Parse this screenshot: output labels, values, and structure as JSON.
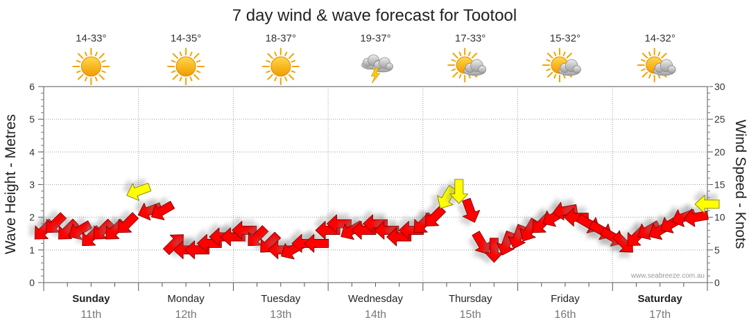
{
  "chart_data": {
    "type": "wind-wave-forecast",
    "title": "7 day wind & wave forecast for Tootool",
    "ylabel_left": "Wave Height - Metres",
    "ylabel_right": "Wind Speed - Knots",
    "ylim_left": [
      0,
      6
    ],
    "ylim_right": [
      0,
      30
    ],
    "yticks_left": [
      "0",
      "1",
      "2",
      "3",
      "4",
      "5",
      "6"
    ],
    "yticks_right": [
      "0",
      "5",
      "10",
      "15",
      "20",
      "25",
      "30"
    ],
    "days": [
      {
        "name": "Sunday",
        "date": "11th",
        "temp": "14-33°",
        "weather": "sunny",
        "bold": true
      },
      {
        "name": "Monday",
        "date": "12th",
        "temp": "14-35°",
        "weather": "sunny",
        "bold": false
      },
      {
        "name": "Tuesday",
        "date": "13th",
        "temp": "18-37°",
        "weather": "sunny",
        "bold": false
      },
      {
        "name": "Wednesday",
        "date": "14th",
        "temp": "19-37°",
        "weather": "storm",
        "bold": false
      },
      {
        "name": "Thursday",
        "date": "15th",
        "temp": "17-33°",
        "weather": "partly-cloudy",
        "bold": false
      },
      {
        "name": "Friday",
        "date": "16th",
        "temp": "15-32°",
        "weather": "partly-cloudy",
        "bold": false
      },
      {
        "name": "Saturday",
        "date": "17th",
        "temp": "14-32°",
        "weather": "partly-cloudy",
        "bold": true
      }
    ],
    "wind_x_days": [
      0.0,
      0.12,
      0.25,
      0.38,
      0.5,
      0.62,
      0.75,
      0.88,
      1.0,
      1.12,
      1.25,
      1.38,
      1.5,
      1.62,
      1.75,
      1.88,
      2.0,
      2.12,
      2.25,
      2.38,
      2.5,
      2.62,
      2.75,
      2.88,
      3.0,
      3.12,
      3.25,
      3.38,
      3.5,
      3.62,
      3.75,
      3.88,
      4.0,
      4.12,
      4.25,
      4.38,
      4.5,
      4.62,
      4.75,
      4.88,
      5.0,
      5.12,
      5.25,
      5.38,
      5.5,
      5.62,
      5.75,
      5.88,
      6.0,
      6.12,
      6.25,
      6.38,
      6.5,
      6.62,
      6.75,
      6.88,
      7.0
    ],
    "wind_knots": [
      8,
      9,
      8,
      8,
      7,
      8,
      8,
      9,
      14,
      11,
      11,
      6,
      5,
      5,
      6,
      7,
      7,
      8,
      7,
      6,
      5,
      5,
      6,
      6,
      8,
      9,
      8,
      8,
      9,
      8,
      7,
      8,
      9,
      10,
      13,
      14,
      11,
      6,
      5,
      6,
      7,
      8,
      9,
      10,
      11,
      10,
      9,
      8,
      7,
      6,
      7,
      8,
      8,
      9,
      10,
      10,
      12
    ],
    "wind_dir_deg": [
      45,
      45,
      45,
      60,
      45,
      45,
      45,
      45,
      70,
      70,
      60,
      225,
      90,
      90,
      90,
      90,
      90,
      90,
      45,
      45,
      90,
      60,
      90,
      90,
      90,
      90,
      60,
      90,
      90,
      90,
      90,
      90,
      45,
      45,
      30,
      0,
      340,
      330,
      0,
      20,
      20,
      30,
      45,
      60,
      80,
      90,
      300,
      300,
      300,
      315,
      45,
      60,
      60,
      60,
      70,
      80,
      90
    ],
    "wind_highlight_min_knots": 12,
    "credit": "www.seabreeze.com.au"
  }
}
